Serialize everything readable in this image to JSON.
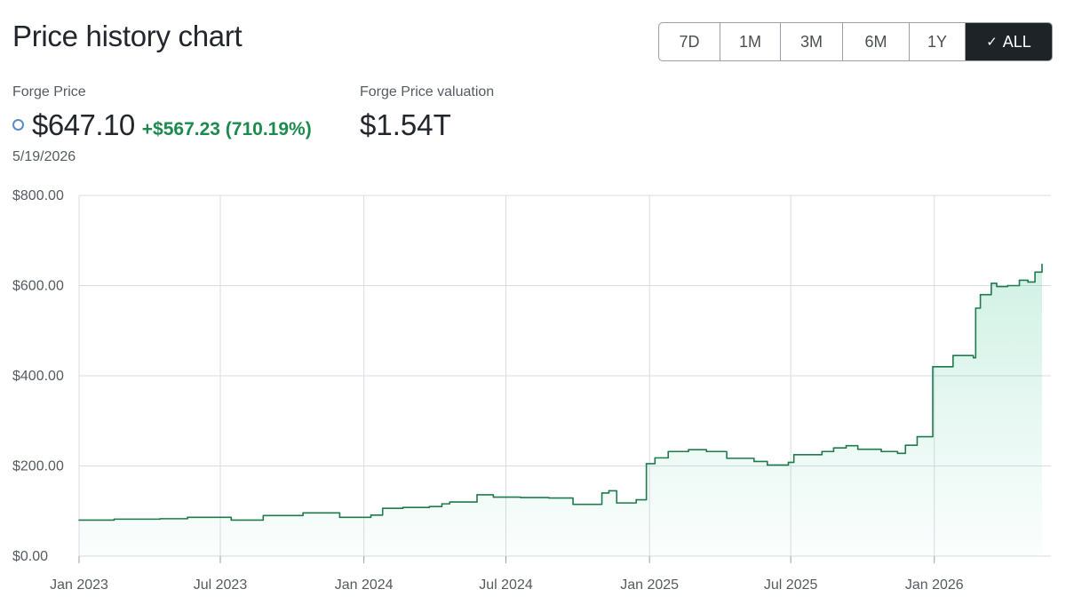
{
  "header": {
    "title": "Price history chart",
    "ranges": [
      {
        "label": "7D",
        "active": false
      },
      {
        "label": "1M",
        "active": false
      },
      {
        "label": "3M",
        "active": false
      },
      {
        "label": "6M",
        "active": false
      },
      {
        "label": "1Y",
        "active": false
      },
      {
        "label": "ALL",
        "active": true
      }
    ]
  },
  "stats": {
    "price_label": "Forge Price",
    "price": "$647.10",
    "change": "+$567.23 (710.19%)",
    "date": "5/19/2026",
    "valuation_label": "Forge Price valuation",
    "valuation": "$1.54T"
  },
  "colors": {
    "line": "#1f7a4c",
    "fill": "#2fc08a",
    "grid": "#d9dce3",
    "positive": "#1d8a4e",
    "marker": "#5b8cc9"
  },
  "chart_data": {
    "type": "area",
    "xlabel": "",
    "ylabel": "",
    "ylim": [
      0,
      800
    ],
    "yticks": [
      0,
      200,
      400,
      600,
      800
    ],
    "ytick_labels": [
      "$0.00",
      "$200.00",
      "$400.00",
      "$600.00",
      "$800.00"
    ],
    "xticks": [
      "2023-01-01",
      "2023-07-01",
      "2024-01-01",
      "2024-07-01",
      "2025-01-01",
      "2025-07-01",
      "2026-01-01"
    ],
    "xtick_labels": [
      "Jan 2023",
      "Jul 2023",
      "Jan 2024",
      "Jul 2024",
      "Jan 2025",
      "Jul 2025",
      "Jan 2026"
    ],
    "xlim": [
      "2023-01-01",
      "2026-05-19"
    ],
    "grid": true,
    "series": [
      {
        "step": true,
        "points": [
          [
            "2023-01-01",
            80
          ],
          [
            "2023-02-15",
            82
          ],
          [
            "2023-04-15",
            83
          ],
          [
            "2023-05-20",
            86
          ],
          [
            "2023-07-15",
            80
          ],
          [
            "2023-08-25",
            90
          ],
          [
            "2023-10-15",
            96
          ],
          [
            "2023-12-01",
            86
          ],
          [
            "2024-01-10",
            91
          ],
          [
            "2024-01-25",
            106
          ],
          [
            "2024-02-20",
            108
          ],
          [
            "2024-03-25",
            110
          ],
          [
            "2024-04-10",
            116
          ],
          [
            "2024-04-20",
            120
          ],
          [
            "2024-05-25",
            136
          ],
          [
            "2024-06-15",
            131
          ],
          [
            "2024-07-20",
            130
          ],
          [
            "2024-08-25",
            129
          ],
          [
            "2024-09-25",
            115
          ],
          [
            "2024-11-01",
            140
          ],
          [
            "2024-11-10",
            145
          ],
          [
            "2024-11-20",
            118
          ],
          [
            "2024-12-15",
            125
          ],
          [
            "2024-12-28",
            205
          ],
          [
            "2025-01-08",
            218
          ],
          [
            "2025-01-25",
            232
          ],
          [
            "2025-02-20",
            236
          ],
          [
            "2025-03-15",
            232
          ],
          [
            "2025-04-10",
            217
          ],
          [
            "2025-05-15",
            210
          ],
          [
            "2025-06-01",
            202
          ],
          [
            "2025-06-28",
            208
          ],
          [
            "2025-07-05",
            225
          ],
          [
            "2025-08-10",
            232
          ],
          [
            "2025-08-25",
            240
          ],
          [
            "2025-09-10",
            245
          ],
          [
            "2025-09-25",
            237
          ],
          [
            "2025-10-25",
            232
          ],
          [
            "2025-11-15",
            228
          ],
          [
            "2025-11-25",
            246
          ],
          [
            "2025-12-10",
            265
          ],
          [
            "2025-12-30",
            420
          ],
          [
            "2026-01-25",
            445
          ],
          [
            "2026-02-20",
            440
          ],
          [
            "2026-02-23",
            550
          ],
          [
            "2026-03-01",
            580
          ],
          [
            "2026-03-15",
            605
          ],
          [
            "2026-03-22",
            598
          ],
          [
            "2026-04-05",
            600
          ],
          [
            "2026-04-20",
            612
          ],
          [
            "2026-05-01",
            608
          ],
          [
            "2026-05-10",
            630
          ],
          [
            "2026-05-19",
            647.1
          ]
        ]
      }
    ]
  }
}
